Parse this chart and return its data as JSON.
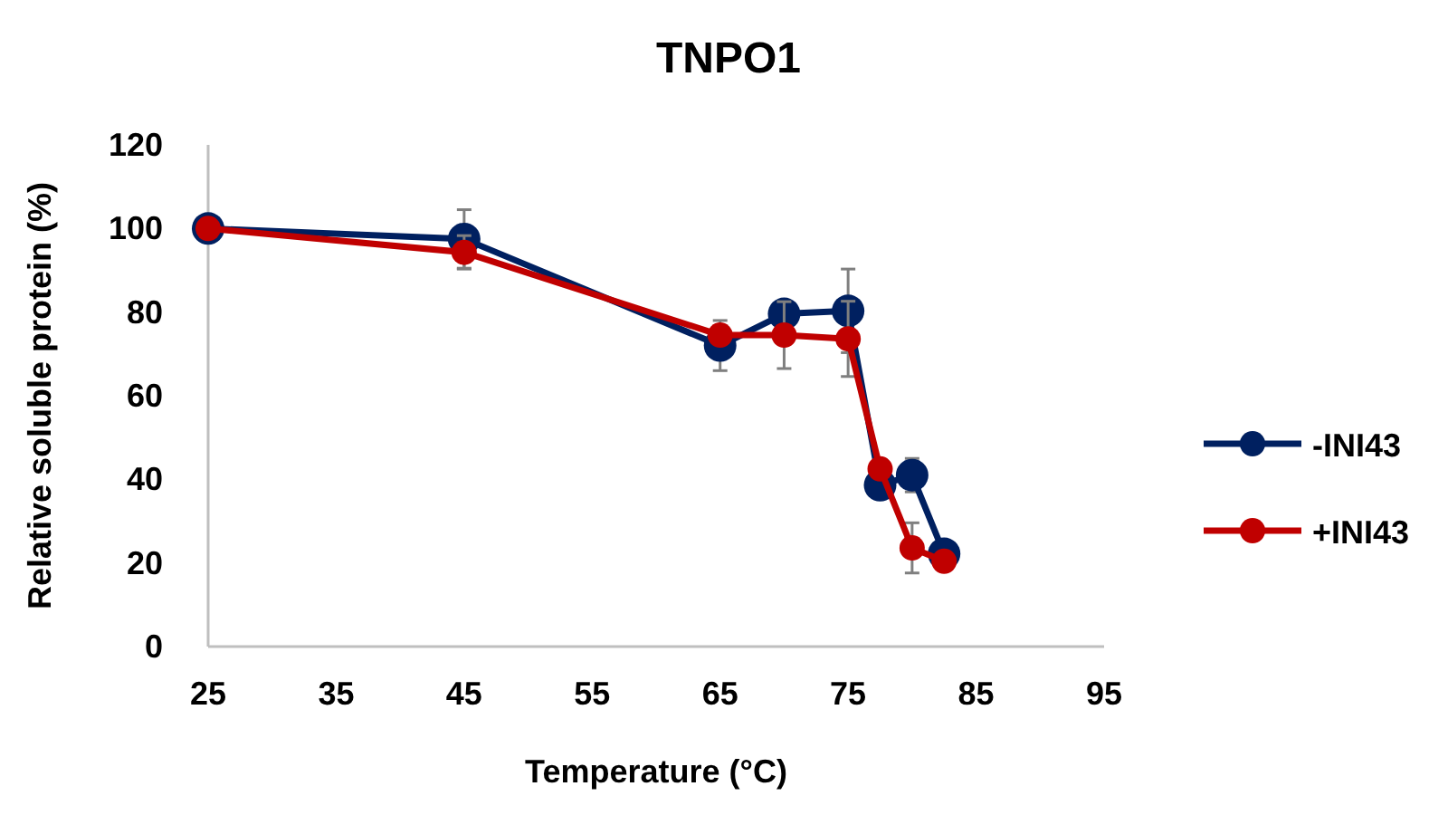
{
  "chart_data": {
    "type": "line",
    "title": "TNPO1",
    "xlabel": "Temperature (°C)",
    "ylabel": "Relative soluble protein (%)",
    "x": [
      25,
      45,
      65,
      70,
      75,
      77.5,
      80,
      82.5
    ],
    "series": [
      {
        "name": "-INI43",
        "color": "#002060",
        "values": [
          100,
          97.5,
          72,
          79.6,
          80.3,
          38.6,
          41,
          22.2
        ],
        "errors": [
          null,
          7,
          6,
          null,
          10,
          null,
          4,
          null
        ]
      },
      {
        "name": "+INI43",
        "color": "#c00000",
        "values": [
          100,
          94.3,
          74.5,
          74.5,
          73.6,
          42.5,
          23.6,
          20.4
        ],
        "errors": [
          null,
          4,
          null,
          8,
          9,
          null,
          6,
          null
        ]
      }
    ],
    "xlim": [
      25,
      95
    ],
    "xticks": [
      25,
      35,
      45,
      55,
      65,
      75,
      85,
      95
    ],
    "ylim": [
      0,
      120
    ],
    "yticks": [
      0,
      20,
      40,
      60,
      80,
      100,
      120
    ],
    "marker": "circle",
    "line_style": "solid",
    "legend": "right",
    "grid": false
  }
}
